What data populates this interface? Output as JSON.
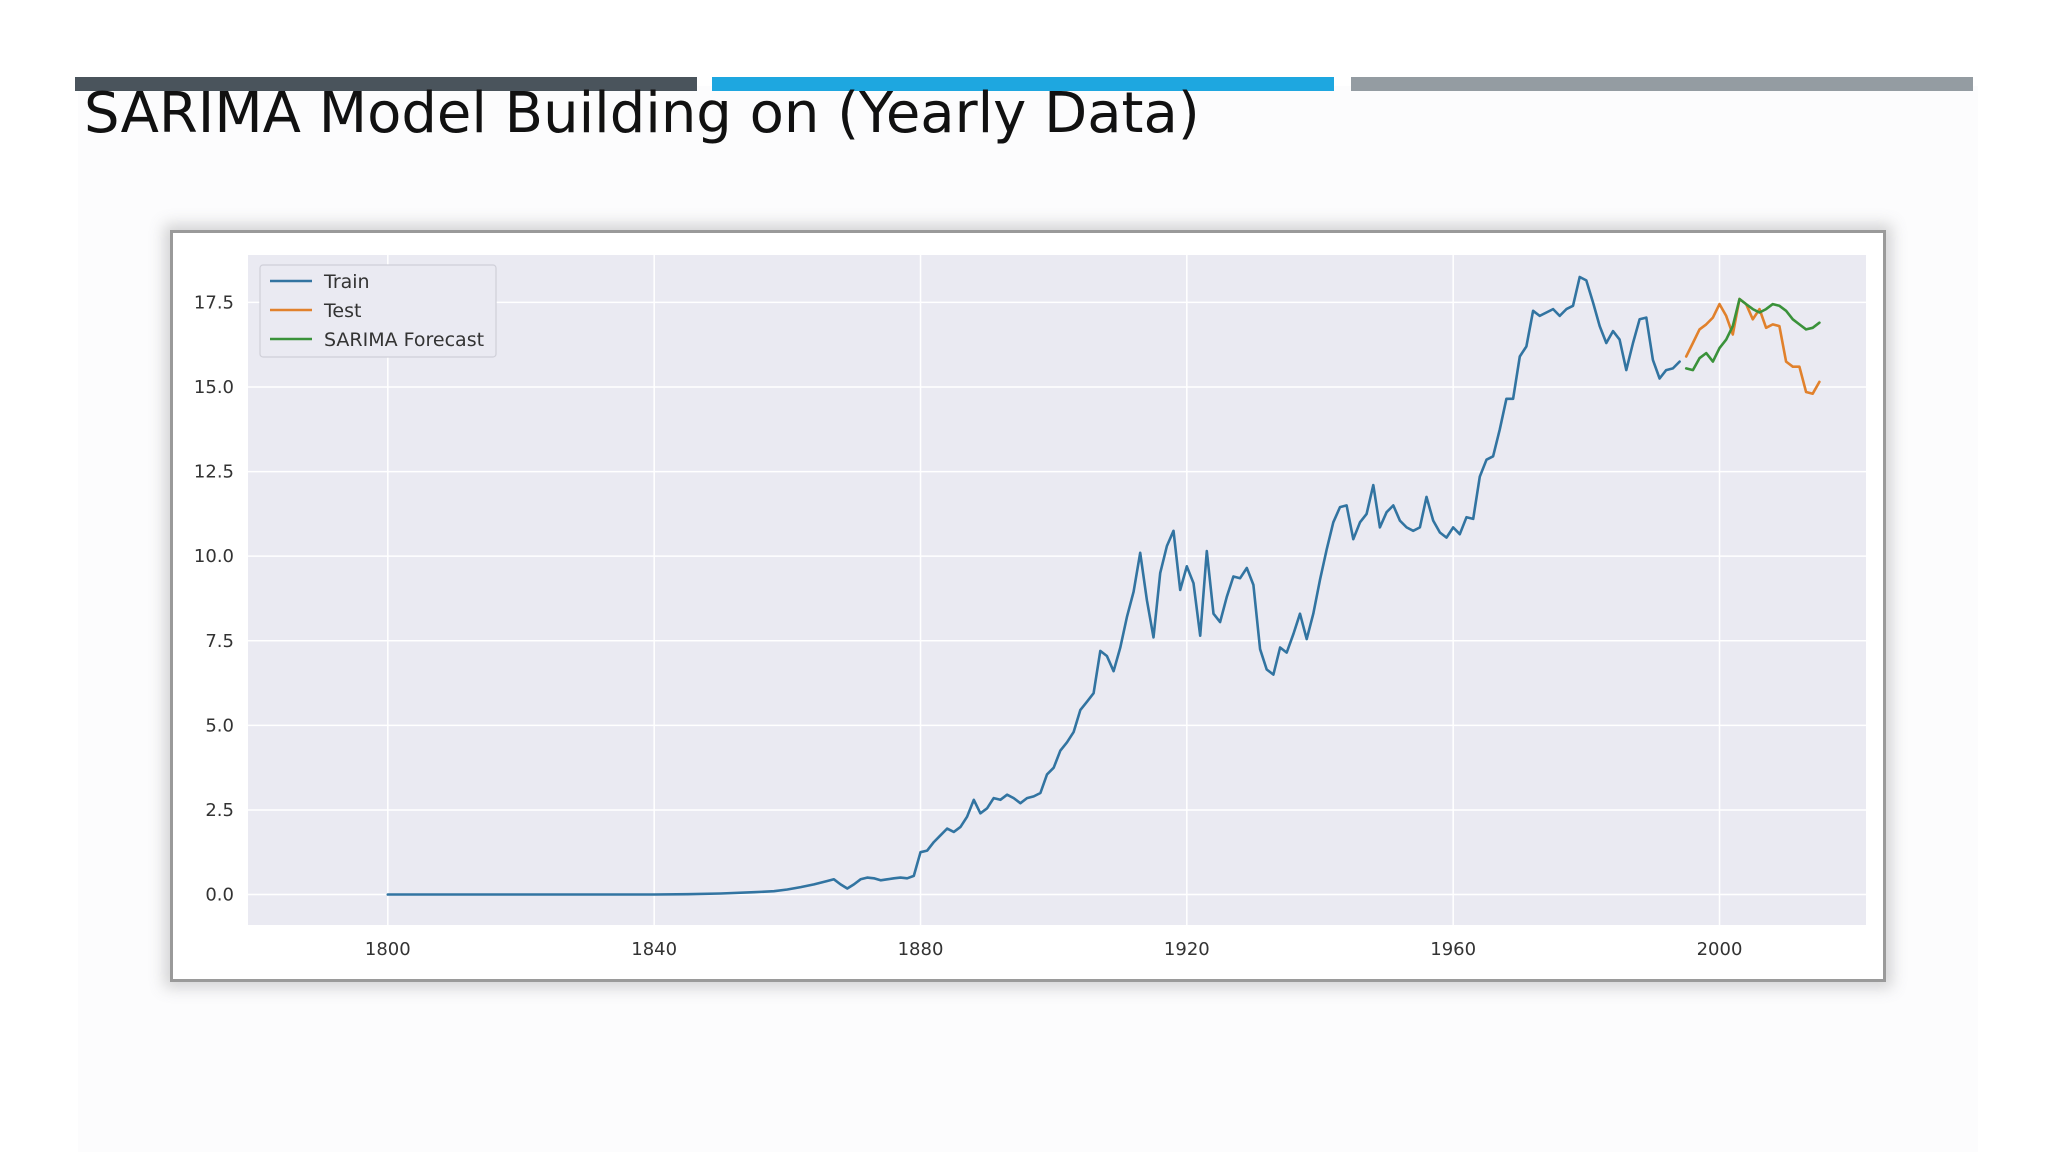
{
  "slide": {
    "title": "SARIMA Model Building on (Yearly Data)",
    "accent_colors": [
      "#4a545c",
      "#1ea7e0",
      "#949ca2"
    ]
  },
  "chart_data": {
    "type": "line",
    "title": "",
    "xlabel": "",
    "ylabel": "",
    "xlim": [
      1779,
      2022
    ],
    "ylim": [
      -0.9,
      18.9
    ],
    "x_ticks": [
      1800,
      1840,
      1880,
      1920,
      1960,
      2000
    ],
    "x_tick_labels": [
      "1800",
      "1840",
      "1880",
      "1920",
      "1960",
      "2000"
    ],
    "y_ticks": [
      0,
      2.5,
      5,
      7.5,
      10,
      12.5,
      15,
      17.5
    ],
    "y_tick_labels": [
      "0.0",
      "2.5",
      "5.0",
      "7.5",
      "10.0",
      "12.5",
      "15.0",
      "17.5"
    ],
    "grid": true,
    "legend_position": "top-left",
    "background_color": "#eaeaf2",
    "series": [
      {
        "name": "Train",
        "color": "#3274a1",
        "points": [
          [
            1800,
            0
          ],
          [
            1810,
            0
          ],
          [
            1820,
            0
          ],
          [
            1830,
            0
          ],
          [
            1840,
            0
          ],
          [
            1845,
            0.01
          ],
          [
            1850,
            0.03
          ],
          [
            1855,
            0.07
          ],
          [
            1858,
            0.1
          ],
          [
            1860,
            0.15
          ],
          [
            1862,
            0.22
          ],
          [
            1864,
            0.3
          ],
          [
            1866,
            0.4
          ],
          [
            1867,
            0.45
          ],
          [
            1868,
            0.3
          ],
          [
            1869,
            0.18
          ],
          [
            1870,
            0.3
          ],
          [
            1871,
            0.45
          ],
          [
            1872,
            0.5
          ],
          [
            1873,
            0.48
          ],
          [
            1874,
            0.42
          ],
          [
            1875,
            0.45
          ],
          [
            1876,
            0.48
          ],
          [
            1877,
            0.5
          ],
          [
            1878,
            0.48
          ],
          [
            1879,
            0.55
          ],
          [
            1880,
            1.25
          ],
          [
            1881,
            1.3
          ],
          [
            1882,
            1.55
          ],
          [
            1883,
            1.75
          ],
          [
            1884,
            1.95
          ],
          [
            1885,
            1.85
          ],
          [
            1886,
            2.0
          ],
          [
            1887,
            2.3
          ],
          [
            1888,
            2.8
          ],
          [
            1889,
            2.4
          ],
          [
            1890,
            2.55
          ],
          [
            1891,
            2.85
          ],
          [
            1892,
            2.8
          ],
          [
            1893,
            2.95
          ],
          [
            1894,
            2.85
          ],
          [
            1895,
            2.7
          ],
          [
            1896,
            2.85
          ],
          [
            1897,
            2.9
          ],
          [
            1898,
            3.0
          ],
          [
            1899,
            3.55
          ],
          [
            1900,
            3.75
          ],
          [
            1901,
            4.25
          ],
          [
            1902,
            4.5
          ],
          [
            1903,
            4.8
          ],
          [
            1904,
            5.45
          ],
          [
            1905,
            5.7
          ],
          [
            1906,
            5.95
          ],
          [
            1907,
            7.2
          ],
          [
            1908,
            7.05
          ],
          [
            1909,
            6.6
          ],
          [
            1910,
            7.3
          ],
          [
            1911,
            8.2
          ],
          [
            1912,
            8.95
          ],
          [
            1913,
            10.1
          ],
          [
            1914,
            8.7
          ],
          [
            1915,
            7.6
          ],
          [
            1916,
            9.5
          ],
          [
            1917,
            10.3
          ],
          [
            1918,
            10.75
          ],
          [
            1919,
            9.0
          ],
          [
            1920,
            9.7
          ],
          [
            1921,
            9.2
          ],
          [
            1922,
            7.65
          ],
          [
            1923,
            10.15
          ],
          [
            1924,
            8.3
          ],
          [
            1925,
            8.05
          ],
          [
            1926,
            8.8
          ],
          [
            1927,
            9.4
          ],
          [
            1928,
            9.35
          ],
          [
            1929,
            9.65
          ],
          [
            1930,
            9.15
          ],
          [
            1931,
            7.25
          ],
          [
            1932,
            6.65
          ],
          [
            1933,
            6.5
          ],
          [
            1934,
            7.3
          ],
          [
            1935,
            7.15
          ],
          [
            1936,
            7.7
          ],
          [
            1937,
            8.3
          ],
          [
            1938,
            7.55
          ],
          [
            1939,
            8.3
          ],
          [
            1940,
            9.3
          ],
          [
            1941,
            10.2
          ],
          [
            1942,
            11.0
          ],
          [
            1943,
            11.45
          ],
          [
            1944,
            11.5
          ],
          [
            1945,
            10.5
          ],
          [
            1946,
            11.0
          ],
          [
            1947,
            11.25
          ],
          [
            1948,
            12.1
          ],
          [
            1949,
            10.85
          ],
          [
            1950,
            11.3
          ],
          [
            1951,
            11.5
          ],
          [
            1952,
            11.05
          ],
          [
            1953,
            10.85
          ],
          [
            1954,
            10.75
          ],
          [
            1955,
            10.85
          ],
          [
            1956,
            11.75
          ],
          [
            1957,
            11.05
          ],
          [
            1958,
            10.7
          ],
          [
            1959,
            10.55
          ],
          [
            1960,
            10.85
          ],
          [
            1961,
            10.65
          ],
          [
            1962,
            11.15
          ],
          [
            1963,
            11.1
          ],
          [
            1964,
            12.35
          ],
          [
            1965,
            12.85
          ],
          [
            1966,
            12.95
          ],
          [
            1967,
            13.75
          ],
          [
            1968,
            14.65
          ],
          [
            1969,
            14.65
          ],
          [
            1970,
            15.9
          ],
          [
            1971,
            16.2
          ],
          [
            1972,
            17.25
          ],
          [
            1973,
            17.1
          ],
          [
            1974,
            17.2
          ],
          [
            1975,
            17.3
          ],
          [
            1976,
            17.1
          ],
          [
            1977,
            17.3
          ],
          [
            1978,
            17.4
          ],
          [
            1979,
            18.25
          ],
          [
            1980,
            18.15
          ],
          [
            1981,
            17.5
          ],
          [
            1982,
            16.8
          ],
          [
            1983,
            16.3
          ],
          [
            1984,
            16.65
          ],
          [
            1985,
            16.4
          ],
          [
            1986,
            15.5
          ],
          [
            1987,
            16.3
          ],
          [
            1988,
            17.0
          ],
          [
            1989,
            17.05
          ],
          [
            1990,
            15.8
          ],
          [
            1991,
            15.25
          ],
          [
            1992,
            15.5
          ],
          [
            1993,
            15.55
          ],
          [
            1994,
            15.75
          ]
        ]
      },
      {
        "name": "Test",
        "color": "#e1812c",
        "points": [
          [
            1995,
            15.9
          ],
          [
            1996,
            16.3
          ],
          [
            1997,
            16.7
          ],
          [
            1998,
            16.85
          ],
          [
            1999,
            17.05
          ],
          [
            2000,
            17.45
          ],
          [
            2001,
            17.1
          ],
          [
            2002,
            16.55
          ],
          [
            2003,
            17.6
          ],
          [
            2004,
            17.45
          ],
          [
            2005,
            17.0
          ],
          [
            2006,
            17.3
          ],
          [
            2007,
            16.75
          ],
          [
            2008,
            16.85
          ],
          [
            2009,
            16.8
          ],
          [
            2010,
            15.75
          ],
          [
            2011,
            15.6
          ],
          [
            2012,
            15.6
          ],
          [
            2013,
            14.85
          ],
          [
            2014,
            14.8
          ],
          [
            2015,
            15.15
          ]
        ]
      },
      {
        "name": "SARIMA Forecast",
        "color": "#3a923a",
        "points": [
          [
            1995,
            15.55
          ],
          [
            1996,
            15.5
          ],
          [
            1997,
            15.85
          ],
          [
            1998,
            16.0
          ],
          [
            1999,
            15.75
          ],
          [
            2000,
            16.15
          ],
          [
            2001,
            16.4
          ],
          [
            2002,
            16.8
          ],
          [
            2003,
            17.6
          ],
          [
            2004,
            17.45
          ],
          [
            2005,
            17.3
          ],
          [
            2006,
            17.2
          ],
          [
            2007,
            17.3
          ],
          [
            2008,
            17.45
          ],
          [
            2009,
            17.4
          ],
          [
            2010,
            17.25
          ],
          [
            2011,
            17.0
          ],
          [
            2012,
            16.85
          ],
          [
            2013,
            16.7
          ],
          [
            2014,
            16.75
          ],
          [
            2015,
            16.9
          ]
        ]
      }
    ]
  }
}
